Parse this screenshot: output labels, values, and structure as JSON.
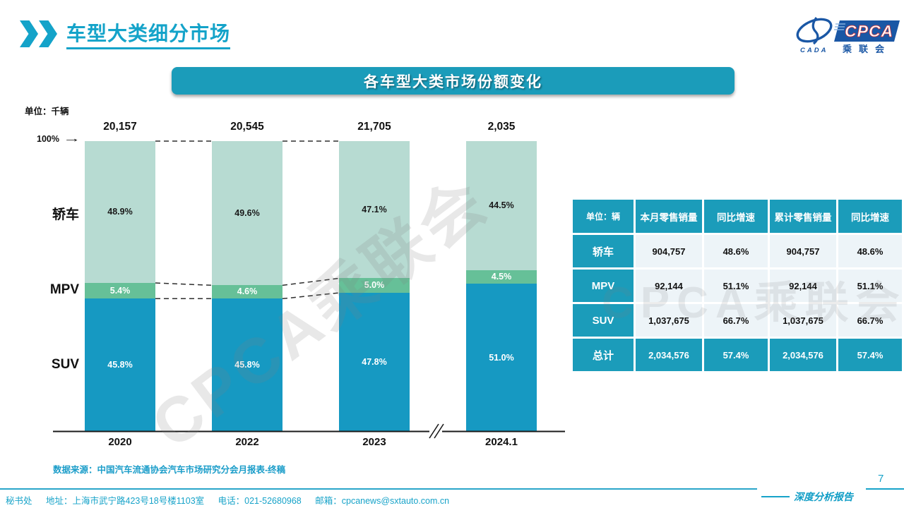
{
  "header": {
    "title": "车型大类细分市场"
  },
  "logo": {
    "cada": "CADA",
    "cpca": "CPCA",
    "sub": "乘联会"
  },
  "banner": {
    "title": "各车型大类市场份额变化"
  },
  "chart_data": {
    "type": "bar",
    "stacked": true,
    "title": "各车型大类市场份额变化",
    "unit_label": "单位：千辆",
    "axis_top_label": "100%",
    "ylim": [
      0,
      100
    ],
    "grid": false,
    "categories": [
      "2020",
      "2022",
      "2023",
      "2024.1"
    ],
    "totals": [
      "20,157",
      "20,545",
      "21,705",
      "2,035"
    ],
    "axis_break_between": [
      "2023",
      "2024.1"
    ],
    "series": [
      {
        "key": "sedan",
        "name": "轿车",
        "color": "#b7dbd2",
        "label_color": "#1a1a1a",
        "values": [
          48.9,
          49.6,
          47.1,
          44.5
        ],
        "labels": [
          "48.9%",
          "49.6%",
          "47.1%",
          "44.5%"
        ]
      },
      {
        "key": "mpv",
        "name": "MPV",
        "color": "#66c098",
        "label_color": "#ffffff",
        "values": [
          5.4,
          4.6,
          5.0,
          4.5
        ],
        "labels": [
          "5.4%",
          "4.6%",
          "5.0%",
          "4.5%"
        ]
      },
      {
        "key": "suv",
        "name": "SUV",
        "color": "#1699c2",
        "label_color": "#ffffff",
        "values": [
          45.8,
          45.8,
          47.8,
          51.0
        ],
        "labels": [
          "45.8%",
          "45.8%",
          "47.8%",
          "51.0%"
        ]
      }
    ]
  },
  "table": {
    "unit_header": "单位：辆",
    "columns": [
      "本月零售销量",
      "同比增速",
      "累计零售销量",
      "同比增速"
    ],
    "rows": [
      {
        "label": "轿车",
        "cells": [
          "904,757",
          "48.6%",
          "904,757",
          "48.6%"
        ],
        "highlight": false
      },
      {
        "label": "MPV",
        "cells": [
          "92,144",
          "51.1%",
          "92,144",
          "51.1%"
        ],
        "highlight": false
      },
      {
        "label": "SUV",
        "cells": [
          "1,037,675",
          "66.7%",
          "1,037,675",
          "66.7%"
        ],
        "highlight": false
      },
      {
        "label": "总计",
        "cells": [
          "2,034,576",
          "57.4%",
          "2,034,576",
          "57.4%"
        ],
        "highlight": true
      }
    ]
  },
  "watermark": {
    "text": "CPCA乘联会"
  },
  "source_note": "数据来源：中国汽车流通协会汽车市场研究分会月报表-终稿",
  "footer": {
    "secretariat": "秘书处",
    "address": "地址：上海市武宁路423号18号楼1103室",
    "phone": "电话：021-52680968",
    "email": "邮箱：cpcanews@sxtauto.com.cn",
    "report_label": "深度分析报告",
    "page": "7"
  },
  "colors": {
    "teal": "#1b9cba",
    "bar_teal": "#1699c2",
    "mpv_green": "#66c098",
    "sedan_green": "#b7dbd2",
    "accent": "#14a3c9",
    "logo_blue": "#1a57a5",
    "cell_bg": "#edf4f8"
  }
}
